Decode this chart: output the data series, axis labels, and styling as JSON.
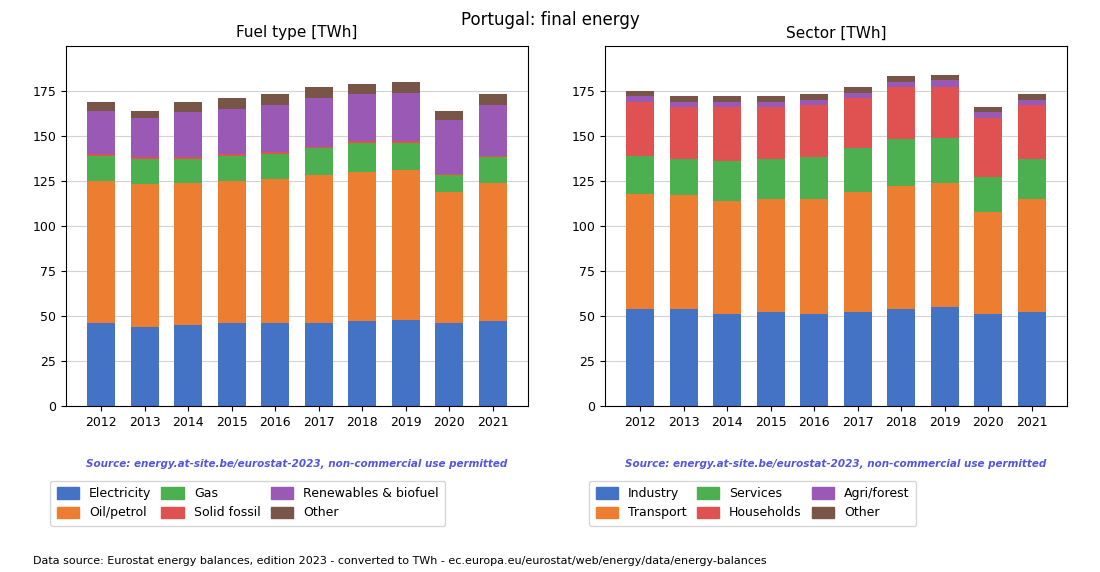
{
  "title": "Portugal: final energy",
  "years": [
    2012,
    2013,
    2014,
    2015,
    2016,
    2017,
    2018,
    2019,
    2020,
    2021
  ],
  "fuel_title": "Fuel type [TWh]",
  "fuel_series": {
    "Electricity": [
      46,
      44,
      45,
      46,
      46,
      46,
      47,
      48,
      46,
      47
    ],
    "Oil/petrol": [
      79,
      79,
      79,
      79,
      80,
      82,
      83,
      83,
      73,
      77
    ],
    "Gas": [
      14,
      14,
      13,
      14,
      14,
      15,
      16,
      15,
      9,
      14
    ],
    "Solid fossil": [
      1,
      1,
      1,
      1,
      1,
      1,
      1,
      1,
      1,
      1
    ],
    "Renewables & biofuel": [
      24,
      22,
      25,
      25,
      26,
      27,
      26,
      27,
      30,
      28
    ],
    "Other": [
      5,
      4,
      6,
      6,
      6,
      6,
      6,
      6,
      5,
      6
    ]
  },
  "fuel_colors": {
    "Electricity": "#4472c4",
    "Oil/petrol": "#ed7d31",
    "Gas": "#4caf50",
    "Solid fossil": "#e05252",
    "Renewables & biofuel": "#9b59b6",
    "Other": "#795548"
  },
  "fuel_legend_order": [
    "Electricity",
    "Oil/petrol",
    "Gas",
    "Solid fossil",
    "Renewables & biofuel",
    "Other"
  ],
  "sector_title": "Sector [TWh]",
  "sector_series": {
    "Industry": [
      54,
      54,
      51,
      52,
      51,
      52,
      54,
      55,
      51,
      52
    ],
    "Transport": [
      64,
      63,
      63,
      63,
      64,
      67,
      68,
      69,
      57,
      63
    ],
    "Services": [
      21,
      20,
      22,
      22,
      23,
      24,
      26,
      25,
      19,
      22
    ],
    "Households": [
      30,
      29,
      30,
      29,
      29,
      28,
      29,
      28,
      33,
      30
    ],
    "Agri/forest": [
      3,
      3,
      3,
      3,
      3,
      3,
      3,
      4,
      3,
      3
    ],
    "Other": [
      3,
      3,
      3,
      3,
      3,
      3,
      3,
      3,
      3,
      3
    ]
  },
  "sector_colors": {
    "Industry": "#4472c4",
    "Transport": "#ed7d31",
    "Services": "#4caf50",
    "Households": "#e05252",
    "Agri/forest": "#9b59b6",
    "Other": "#795548"
  },
  "sector_legend_order": [
    "Industry",
    "Transport",
    "Services",
    "Households",
    "Agri/forest",
    "Other"
  ],
  "source_text": "Source: energy.at-site.be/eurostat-2023, non-commercial use permitted",
  "footer_text": "Data source: Eurostat energy balances, edition 2023 - converted to TWh - ec.europa.eu/eurostat/web/energy/data/energy-balances",
  "source_color": "#5555dd",
  "ylim": [
    0,
    200
  ],
  "yticks": [
    0,
    25,
    50,
    75,
    100,
    125,
    150,
    175
  ],
  "background_color": "#ffffff"
}
